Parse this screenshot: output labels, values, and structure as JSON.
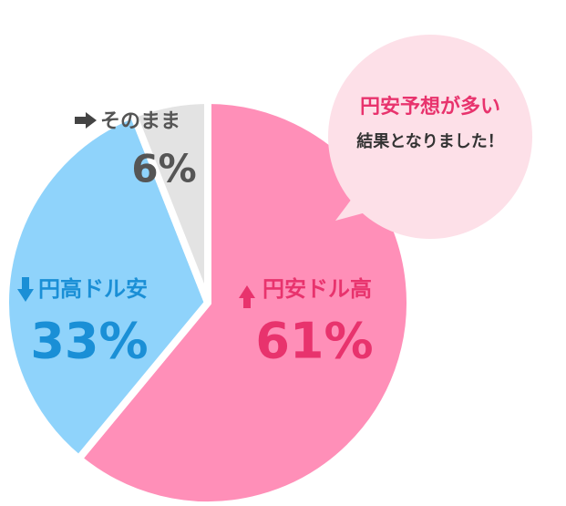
{
  "chart_data": {
    "type": "pie",
    "categories": [
      "円安ドル高",
      "円高ドル安",
      "そのまま"
    ],
    "values": [
      61,
      33,
      6
    ],
    "value_labels": [
      "61%",
      "33%",
      "6%"
    ],
    "colors": [
      "#ff8fb8",
      "#8fd3fb",
      "#e3e3e3"
    ],
    "label_colors": [
      "#e8336d",
      "#1a8fd6",
      "#555555"
    ],
    "annotation": [
      "円安予想が多い",
      "結果となりました！"
    ]
  }
}
